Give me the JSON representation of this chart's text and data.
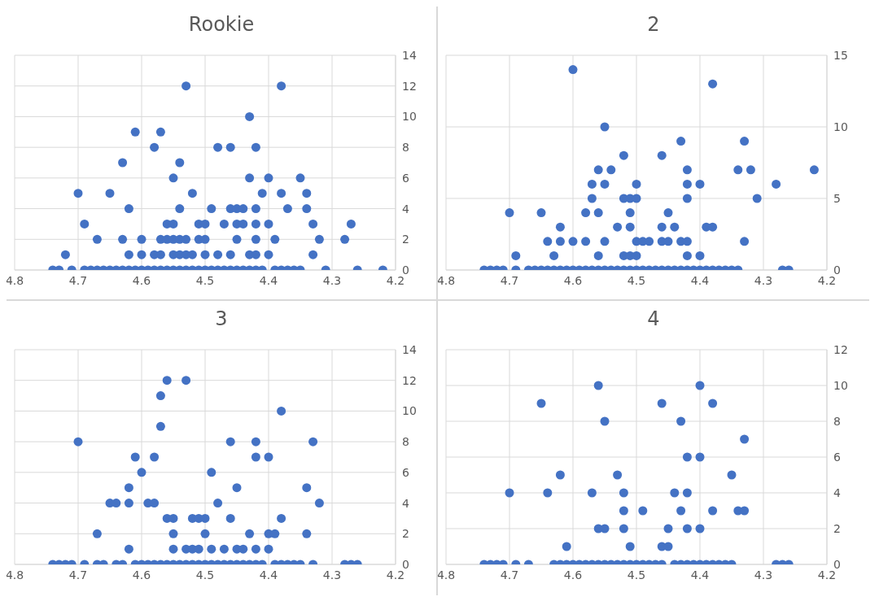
{
  "chart_data": [
    {
      "type": "scatter",
      "title": "Rookie",
      "xlim": [
        4.8,
        4.2
      ],
      "xticks": [
        4.8,
        4.7,
        4.6,
        4.5,
        4.4,
        4.3,
        4.2
      ],
      "ylim": [
        0,
        14
      ],
      "yticks": [
        0,
        2,
        4,
        6,
        8,
        10,
        12,
        14
      ],
      "grid": true,
      "marker": "circle",
      "series": [
        {
          "color": "#4472c4",
          "x": [
            4.53,
            4.38,
            4.43,
            4.61,
            4.57,
            4.58,
            4.48,
            4.46,
            4.42,
            4.63,
            4.54,
            4.55,
            4.43,
            4.4,
            4.35,
            4.7,
            4.65,
            4.52,
            4.41,
            4.38,
            4.34,
            4.62,
            4.54,
            4.49,
            4.46,
            4.45,
            4.44,
            4.42,
            4.37,
            4.34,
            4.69,
            4.56,
            4.55,
            4.51,
            4.5,
            4.47,
            4.45,
            4.44,
            4.42,
            4.4,
            4.33,
            4.27,
            4.67,
            4.63,
            4.6,
            4.57,
            4.56,
            4.55,
            4.54,
            4.53,
            4.51,
            4.5,
            4.45,
            4.42,
            4.39,
            4.32,
            4.28,
            4.72,
            4.62,
            4.6,
            4.58,
            4.57,
            4.55,
            4.54,
            4.53,
            4.52,
            4.5,
            4.48,
            4.46,
            4.43,
            4.42,
            4.4,
            4.33,
            4.74,
            4.73,
            4.71,
            4.69,
            4.68,
            4.67,
            4.66,
            4.65,
            4.64,
            4.63,
            4.62,
            4.61,
            4.6,
            4.59,
            4.58,
            4.57,
            4.56,
            4.55,
            4.54,
            4.53,
            4.52,
            4.51,
            4.5,
            4.49,
            4.48,
            4.47,
            4.46,
            4.45,
            4.44,
            4.43,
            4.42,
            4.41,
            4.39,
            4.38,
            4.37,
            4.36,
            4.35,
            4.31,
            4.26,
            4.22
          ],
          "values": [
            12,
            12,
            10,
            9,
            9,
            8,
            8,
            8,
            8,
            7,
            7,
            6,
            6,
            6,
            6,
            5,
            5,
            5,
            5,
            5,
            5,
            4,
            4,
            4,
            4,
            4,
            4,
            4,
            4,
            4,
            3,
            3,
            3,
            3,
            3,
            3,
            3,
            3,
            3,
            3,
            3,
            3,
            2,
            2,
            2,
            2,
            2,
            2,
            2,
            2,
            2,
            2,
            2,
            2,
            2,
            2,
            2,
            1,
            1,
            1,
            1,
            1,
            1,
            1,
            1,
            1,
            1,
            1,
            1,
            1,
            1,
            1,
            1,
            0,
            0,
            0,
            0,
            0,
            0,
            0,
            0,
            0,
            0,
            0,
            0,
            0,
            0,
            0,
            0,
            0,
            0,
            0,
            0,
            0,
            0,
            0,
            0,
            0,
            0,
            0,
            0,
            0,
            0,
            0,
            0,
            0,
            0,
            0,
            0,
            0,
            0,
            0,
            0
          ]
        }
      ]
    },
    {
      "type": "scatter",
      "title": "2",
      "xlim": [
        4.8,
        4.2
      ],
      "xticks": [
        4.8,
        4.7,
        4.6,
        4.5,
        4.4,
        4.3,
        4.2
      ],
      "ylim": [
        0,
        15
      ],
      "yticks": [
        0,
        5,
        10,
        15
      ],
      "grid": true,
      "marker": "circle",
      "series": [
        {
          "color": "#4472c4",
          "x": [
            4.6,
            4.38,
            4.55,
            4.43,
            4.33,
            4.52,
            4.46,
            4.56,
            4.54,
            4.42,
            4.34,
            4.32,
            4.22,
            4.57,
            4.55,
            4.5,
            4.42,
            4.4,
            4.28,
            4.57,
            4.52,
            4.51,
            4.5,
            4.42,
            4.31,
            4.7,
            4.65,
            4.58,
            4.56,
            4.51,
            4.45,
            4.62,
            4.53,
            4.51,
            4.46,
            4.44,
            4.39,
            4.38,
            4.64,
            4.62,
            4.6,
            4.58,
            4.55,
            4.5,
            4.49,
            4.48,
            4.46,
            4.45,
            4.43,
            4.42,
            4.33,
            4.69,
            4.63,
            4.56,
            4.52,
            4.51,
            4.5,
            4.42,
            4.4,
            4.74,
            4.73,
            4.72,
            4.71,
            4.69,
            4.67,
            4.66,
            4.65,
            4.64,
            4.63,
            4.62,
            4.61,
            4.6,
            4.59,
            4.58,
            4.57,
            4.56,
            4.55,
            4.54,
            4.53,
            4.52,
            4.51,
            4.5,
            4.49,
            4.48,
            4.47,
            4.46,
            4.45,
            4.44,
            4.43,
            4.42,
            4.41,
            4.4,
            4.39,
            4.38,
            4.37,
            4.36,
            4.35,
            4.34,
            4.27,
            4.26
          ],
          "values": [
            14,
            13,
            10,
            9,
            9,
            8,
            8,
            7,
            7,
            7,
            7,
            7,
            7,
            6,
            6,
            6,
            6,
            6,
            6,
            5,
            5,
            5,
            5,
            5,
            5,
            4,
            4,
            4,
            4,
            4,
            4,
            3,
            3,
            3,
            3,
            3,
            3,
            3,
            2,
            2,
            2,
            2,
            2,
            2,
            2,
            2,
            2,
            2,
            2,
            2,
            2,
            1,
            1,
            1,
            1,
            1,
            1,
            1,
            1,
            0,
            0,
            0,
            0,
            0,
            0,
            0,
            0,
            0,
            0,
            0,
            0,
            0,
            0,
            0,
            0,
            0,
            0,
            0,
            0,
            0,
            0,
            0,
            0,
            0,
            0,
            0,
            0,
            0,
            0,
            0,
            0,
            0,
            0,
            0,
            0,
            0,
            0,
            0,
            0,
            0
          ]
        }
      ]
    },
    {
      "type": "scatter",
      "title": "3",
      "xlim": [
        4.8,
        4.2
      ],
      "xticks": [
        4.8,
        4.7,
        4.6,
        4.5,
        4.4,
        4.3,
        4.2
      ],
      "ylim": [
        0,
        14
      ],
      "yticks": [
        0,
        2,
        4,
        6,
        8,
        10,
        12,
        14
      ],
      "grid": true,
      "marker": "circle",
      "series": [
        {
          "color": "#4472c4",
          "x": [
            4.56,
            4.53,
            4.57,
            4.38,
            4.57,
            4.7,
            4.46,
            4.42,
            4.33,
            4.61,
            4.58,
            4.42,
            4.4,
            4.6,
            4.49,
            4.62,
            4.45,
            4.34,
            4.65,
            4.64,
            4.62,
            4.59,
            4.58,
            4.48,
            4.32,
            4.56,
            4.55,
            4.52,
            4.51,
            4.5,
            4.46,
            4.38,
            4.67,
            4.55,
            4.5,
            4.43,
            4.4,
            4.39,
            4.34,
            4.62,
            4.55,
            4.53,
            4.52,
            4.51,
            4.49,
            4.47,
            4.45,
            4.44,
            4.42,
            4.4,
            4.74,
            4.73,
            4.72,
            4.71,
            4.69,
            4.67,
            4.66,
            4.64,
            4.63,
            4.61,
            4.6,
            4.59,
            4.58,
            4.57,
            4.56,
            4.55,
            4.54,
            4.53,
            4.52,
            4.51,
            4.5,
            4.49,
            4.48,
            4.47,
            4.46,
            4.45,
            4.44,
            4.43,
            4.42,
            4.41,
            4.39,
            4.38,
            4.37,
            4.36,
            4.35,
            4.33,
            4.28,
            4.27,
            4.26
          ],
          "values": [
            12,
            12,
            11,
            10,
            9,
            8,
            8,
            8,
            8,
            7,
            7,
            7,
            7,
            6,
            6,
            5,
            5,
            5,
            4,
            4,
            4,
            4,
            4,
            4,
            4,
            3,
            3,
            3,
            3,
            3,
            3,
            3,
            2,
            2,
            2,
            2,
            2,
            2,
            2,
            1,
            1,
            1,
            1,
            1,
            1,
            1,
            1,
            1,
            1,
            1,
            0,
            0,
            0,
            0,
            0,
            0,
            0,
            0,
            0,
            0,
            0,
            0,
            0,
            0,
            0,
            0,
            0,
            0,
            0,
            0,
            0,
            0,
            0,
            0,
            0,
            0,
            0,
            0,
            0,
            0,
            0,
            0,
            0,
            0,
            0,
            0,
            0,
            0,
            0
          ]
        }
      ]
    },
    {
      "type": "scatter",
      "title": "4",
      "xlim": [
        4.8,
        4.2
      ],
      "xticks": [
        4.8,
        4.7,
        4.6,
        4.5,
        4.4,
        4.3,
        4.2
      ],
      "ylim": [
        0,
        12
      ],
      "yticks": [
        0,
        2,
        4,
        6,
        8,
        10,
        12
      ],
      "grid": true,
      "marker": "circle",
      "series": [
        {
          "color": "#4472c4",
          "x": [
            4.56,
            4.4,
            4.65,
            4.46,
            4.38,
            4.55,
            4.43,
            4.33,
            4.42,
            4.4,
            4.62,
            4.53,
            4.35,
            4.7,
            4.64,
            4.57,
            4.52,
            4.44,
            4.42,
            4.52,
            4.49,
            4.43,
            4.38,
            4.34,
            4.33,
            4.56,
            4.55,
            4.52,
            4.45,
            4.42,
            4.4,
            4.61,
            4.51,
            4.46,
            4.45,
            4.74,
            4.73,
            4.72,
            4.71,
            4.69,
            4.67,
            4.63,
            4.62,
            4.61,
            4.6,
            4.59,
            4.58,
            4.57,
            4.56,
            4.55,
            4.54,
            4.53,
            4.52,
            4.51,
            4.5,
            4.49,
            4.48,
            4.47,
            4.46,
            4.44,
            4.43,
            4.42,
            4.41,
            4.4,
            4.39,
            4.38,
            4.37,
            4.36,
            4.35,
            4.28,
            4.27,
            4.26
          ],
          "values": [
            10,
            10,
            9,
            9,
            9,
            8,
            8,
            7,
            6,
            6,
            5,
            5,
            5,
            4,
            4,
            4,
            4,
            4,
            4,
            3,
            3,
            3,
            3,
            3,
            3,
            2,
            2,
            2,
            2,
            2,
            2,
            1,
            1,
            1,
            1,
            0,
            0,
            0,
            0,
            0,
            0,
            0,
            0,
            0,
            0,
            0,
            0,
            0,
            0,
            0,
            0,
            0,
            0,
            0,
            0,
            0,
            0,
            0,
            0,
            0,
            0,
            0,
            0,
            0,
            0,
            0,
            0,
            0,
            0,
            0,
            0,
            0
          ]
        }
      ]
    }
  ]
}
